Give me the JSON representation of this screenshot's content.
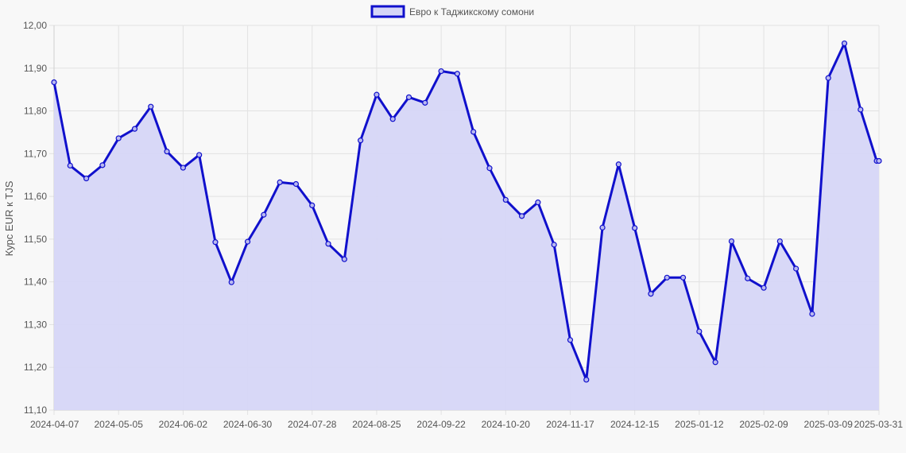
{
  "chart_data": {
    "type": "line",
    "title": "",
    "xlabel": "",
    "ylabel": "Курс EUR к TJS",
    "ylim": [
      11.1,
      12.0
    ],
    "y_ticks": [
      "11,10",
      "11,20",
      "11,30",
      "11,40",
      "11,50",
      "11,60",
      "11,70",
      "11,80",
      "11,90",
      "12,00"
    ],
    "x_ticks": [
      "2024-04-07",
      "2024-05-05",
      "2024-06-02",
      "2024-06-30",
      "2024-07-28",
      "2024-08-25",
      "2024-09-22",
      "2024-10-20",
      "2024-11-17",
      "2024-12-15",
      "2025-01-12",
      "2025-02-09",
      "2025-03-09",
      "2025-03-31"
    ],
    "grid": true,
    "legend_position": "top-center",
    "colors": {
      "line": "#1010cc",
      "fill": "#d6d6f7",
      "grid": "#e2e2e2"
    },
    "series": [
      {
        "name": "Евро к Таджикскому сомони",
        "x": [
          "2024-04-07",
          "2024-04-14",
          "2024-04-21",
          "2024-04-28",
          "2024-05-05",
          "2024-05-12",
          "2024-05-19",
          "2024-05-26",
          "2024-06-02",
          "2024-06-09",
          "2024-06-16",
          "2024-06-23",
          "2024-06-30",
          "2024-07-07",
          "2024-07-14",
          "2024-07-21",
          "2024-07-28",
          "2024-08-04",
          "2024-08-11",
          "2024-08-18",
          "2024-08-25",
          "2024-09-01",
          "2024-09-08",
          "2024-09-15",
          "2024-09-22",
          "2024-09-29",
          "2024-10-06",
          "2024-10-13",
          "2024-10-20",
          "2024-10-27",
          "2024-11-03",
          "2024-11-10",
          "2024-11-17",
          "2024-11-24",
          "2024-12-01",
          "2024-12-08",
          "2024-12-15",
          "2024-12-22",
          "2024-12-29",
          "2025-01-05",
          "2025-01-12",
          "2025-01-19",
          "2025-01-26",
          "2025-02-02",
          "2025-02-09",
          "2025-02-16",
          "2025-02-23",
          "2025-03-02",
          "2025-03-09",
          "2025-03-16",
          "2025-03-23",
          "2025-03-30",
          "2025-03-31"
        ],
        "y": [
          11.867,
          11.672,
          11.642,
          11.673,
          11.736,
          11.758,
          11.81,
          11.705,
          11.667,
          11.697,
          11.493,
          11.399,
          11.494,
          11.557,
          11.633,
          11.629,
          11.579,
          11.489,
          11.453,
          11.731,
          11.838,
          11.781,
          11.832,
          11.819,
          11.893,
          11.887,
          11.751,
          11.666,
          11.592,
          11.554,
          11.586,
          11.487,
          11.264,
          11.171,
          11.527,
          11.675,
          11.526,
          11.372,
          11.41,
          11.41,
          11.284,
          11.212,
          11.495,
          11.408,
          11.386,
          11.495,
          11.431,
          11.325,
          11.877,
          11.958,
          11.803,
          11.683,
          11.683
        ]
      }
    ]
  }
}
